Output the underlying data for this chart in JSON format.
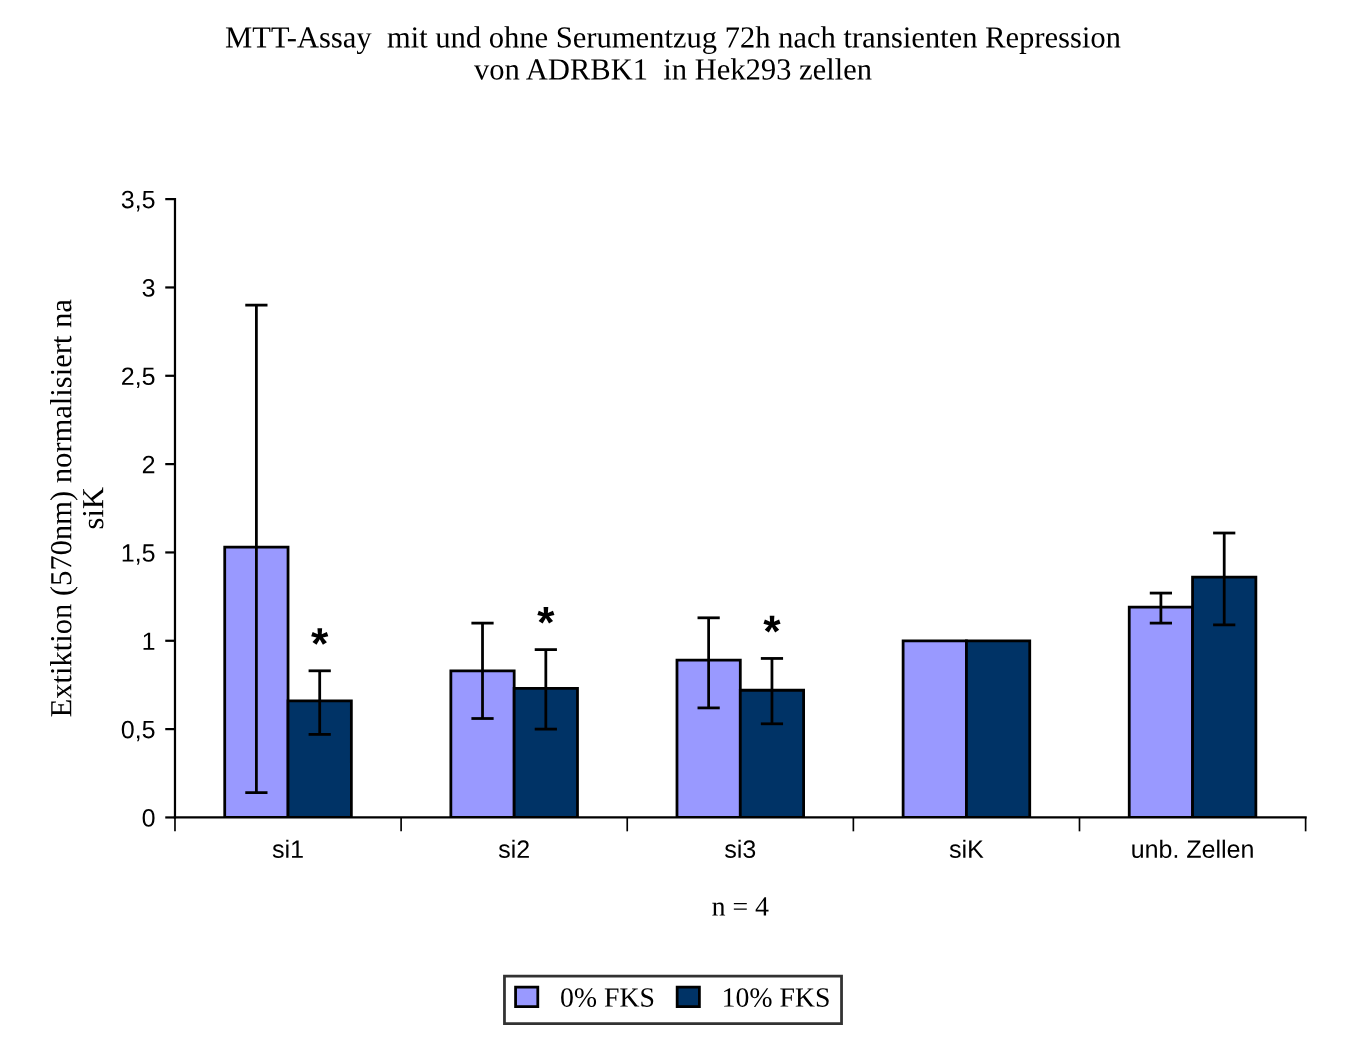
{
  "chart_data": {
    "type": "bar",
    "title": "MTT-Assay  mit und ohne Serumentzug 72h nach transienten Repression\nvon ADRBK1  in Hek293 zellen",
    "xlabel": "n = 4",
    "ylabel": "Extiktion (570nm) normalisiert na\nsiK",
    "categories": [
      "si1",
      "si2",
      "si3",
      "siK",
      "unb. Zellen"
    ],
    "series": [
      {
        "name": "0% FKS",
        "color": "#9999ff",
        "values": [
          1.53,
          0.83,
          0.89,
          1.0,
          1.19
        ],
        "errors": [
          [
            0.14,
            2.9
          ],
          [
            0.56,
            1.1
          ],
          [
            0.62,
            1.13
          ],
          null,
          [
            1.1,
            1.27
          ]
        ]
      },
      {
        "name": "10% FKS",
        "color": "#003366",
        "values": [
          0.66,
          0.73,
          0.72,
          1.0,
          1.36
        ],
        "errors": [
          [
            0.47,
            0.83
          ],
          [
            0.5,
            0.95
          ],
          [
            0.53,
            0.9
          ],
          null,
          [
            1.09,
            1.61
          ]
        ]
      }
    ],
    "annotations": [
      {
        "text": "*",
        "x": "si1",
        "y": 0.66
      },
      {
        "text": "*",
        "x": "si2",
        "y": 0.73
      },
      {
        "text": "*",
        "x": "si3",
        "y": 0.72
      }
    ],
    "ylim": [
      0,
      3.5
    ],
    "yticks": [
      {
        "value": 0,
        "label": "0"
      },
      {
        "value": 0.5,
        "label": "0,5"
      },
      {
        "value": 1,
        "label": "1"
      },
      {
        "value": 1.5,
        "label": "1,5"
      },
      {
        "value": 2,
        "label": "2"
      },
      {
        "value": 2.5,
        "label": "2,5"
      },
      {
        "value": 3,
        "label": "3"
      },
      {
        "value": 3.5,
        "label": "3,5"
      }
    ],
    "grid": false,
    "legend": "bottom"
  }
}
